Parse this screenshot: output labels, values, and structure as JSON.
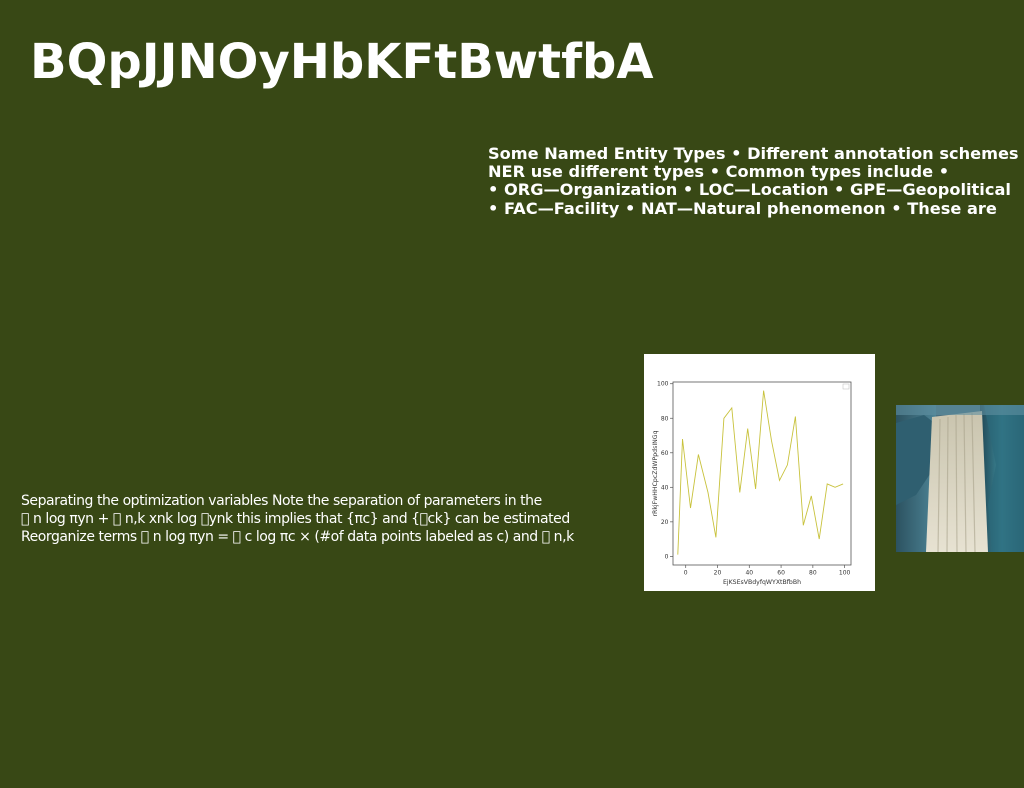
{
  "title": "BQpJJNOyHbKFtBwtfbA",
  "ner_text": {
    "lines": [
      "Some Named Entity Types • Different annotation schemes",
      "NER use different types • Common types include •",
      "• ORG—Organization • LOC—Location • GPE—Geopolitical",
      "• FAC—Facility • NAT—Natural phenomenon • These are"
    ]
  },
  "optimization_text": {
    "lines": [
      "Separating the optimization variables Note the separation of parameters in the",
      "􏰀 n log πyn + 􏰀 n,k xnk log 􏰀ynk this implies that {πc} and {􏰀ck} can be estimated",
      "Reorganize terms 􏰀 n log πyn = 􏰀 c log πc × (#of data points labeled as c) and 􏰀 n,k"
    ]
  },
  "chart_data": {
    "type": "line",
    "title": "",
    "xlabel": "EjKSEsVBdyfqWYXtBfbBh",
    "ylabel": "rRkjFwHHCpcZdWPpdsINGq",
    "x_ticks": [
      0,
      20,
      40,
      60,
      80,
      100
    ],
    "y_ticks": [
      0,
      20,
      40,
      60,
      80,
      100
    ],
    "xlim": [
      -8,
      104
    ],
    "ylim": [
      -5,
      101
    ],
    "grid": false,
    "legend": "none",
    "series": [
      {
        "color": "#c8c23c",
        "x": [
          -5,
          -2,
          3,
          8,
          14,
          19,
          24,
          29,
          34,
          39,
          44,
          49,
          54,
          59,
          64,
          69,
          74,
          79,
          84,
          89,
          94,
          99
        ],
        "y": [
          1,
          68,
          28,
          59,
          37,
          11,
          80,
          86,
          37,
          74,
          39,
          96,
          67,
          44,
          53,
          81,
          18,
          35,
          10,
          42,
          40,
          42
        ]
      }
    ]
  },
  "waterfall_image": {
    "icon": "waterfall-photo"
  }
}
